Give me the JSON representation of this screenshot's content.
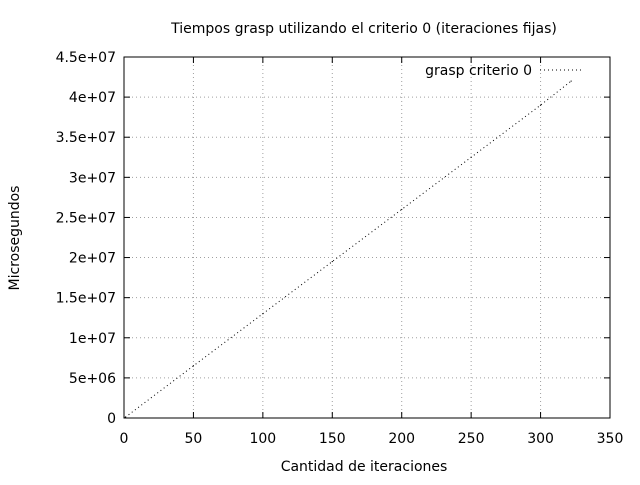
{
  "chart_data": {
    "type": "line",
    "title": "Tiempos grasp utilizando el criterio 0 (iteraciones fijas)",
    "xlabel": "Cantidad de iteraciones",
    "ylabel": "Microsegundos",
    "xlim": [
      0,
      350
    ],
    "ylim": [
      0,
      45000000
    ],
    "x_ticks": [
      0,
      50,
      100,
      150,
      200,
      250,
      300,
      350
    ],
    "x_tick_labels": [
      "0",
      "50",
      "100",
      "150",
      "200",
      "250",
      "300",
      "350"
    ],
    "y_ticks": [
      0,
      5000000,
      10000000,
      15000000,
      20000000,
      25000000,
      30000000,
      35000000,
      40000000,
      45000000
    ],
    "y_tick_labels": [
      "0",
      "5e+06",
      "1e+07",
      "1.5e+07",
      "2e+07",
      "2.5e+07",
      "3e+07",
      "3.5e+07",
      "4e+07",
      "4.5e+07"
    ],
    "grid": true,
    "legend_position": "top-right",
    "series": [
      {
        "name": "grasp criterio 0",
        "style": "dotted",
        "color": "#000000",
        "x": [
          1,
          50,
          100,
          150,
          200,
          250,
          300,
          322
        ],
        "y": [
          100000,
          6500000,
          13000000,
          19500000,
          26000000,
          32500000,
          39000000,
          42000000
        ]
      }
    ]
  }
}
